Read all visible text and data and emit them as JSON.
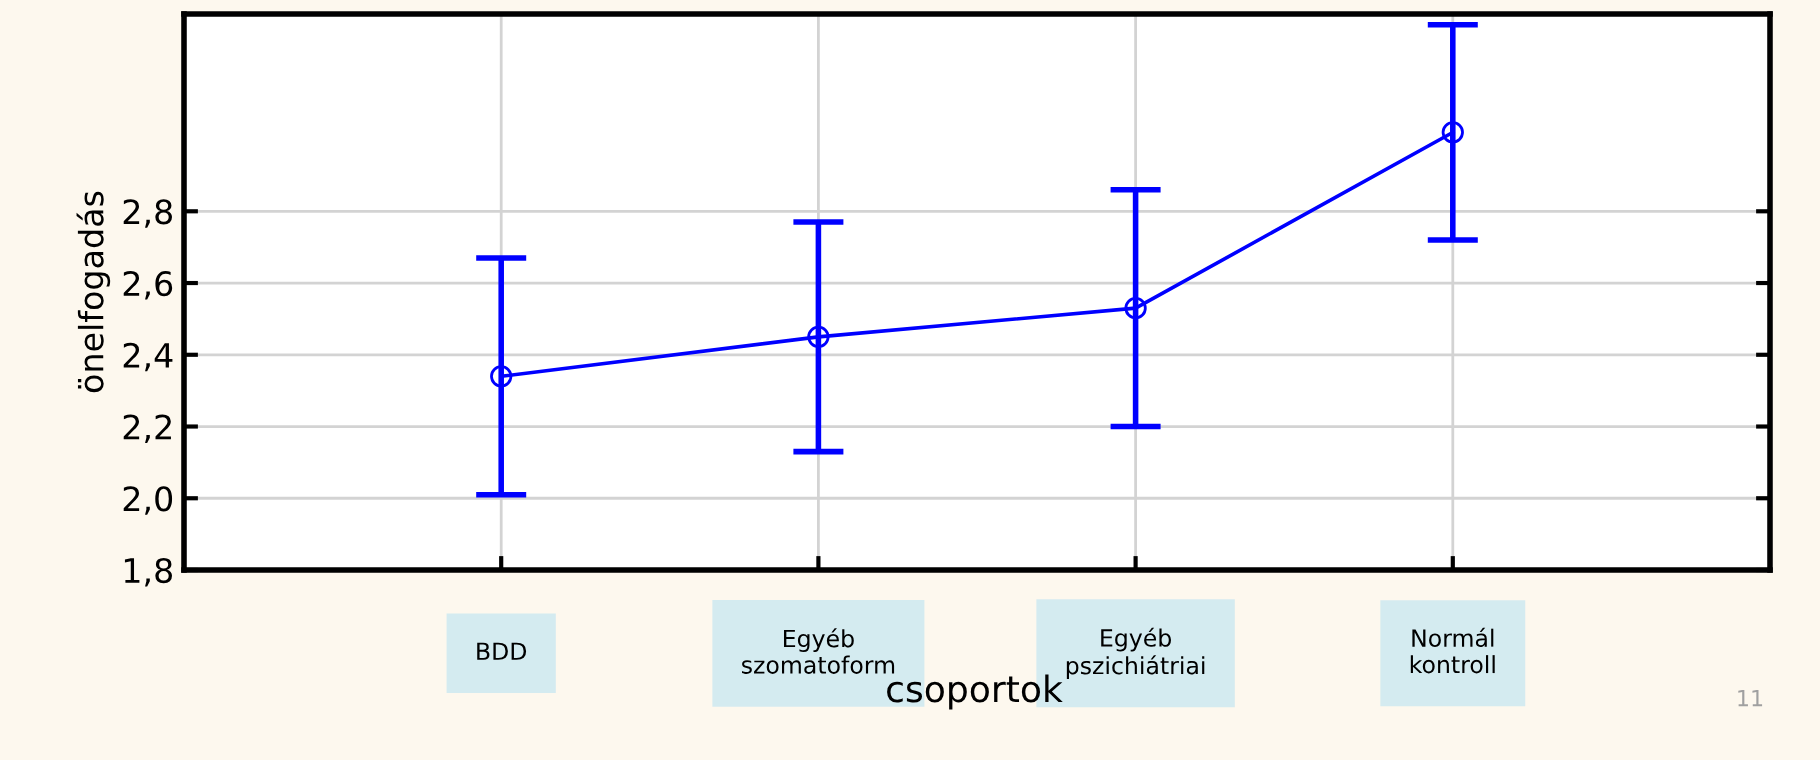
{
  "chart_data": {
    "type": "line",
    "ylabel": "önelfogadás",
    "xlabel": "csoportok",
    "categories": [
      "BDD",
      "Egyéb\nszomatoform",
      "Egyéb\npszichiátriai",
      "Normál\nkontroll"
    ],
    "series": [
      {
        "color": "#0000ff",
        "values": [
          2.34,
          2.45,
          2.53,
          3.02
        ],
        "errors": [
          0.33,
          0.32,
          0.33,
          0.3
        ]
      }
    ],
    "ylim": [
      1.8,
      3.35
    ],
    "yticks": [
      {
        "value": 1.8,
        "label": "1,8"
      },
      {
        "value": 2.0,
        "label": "2,0"
      },
      {
        "value": 2.2,
        "label": "2,2"
      },
      {
        "value": 2.4,
        "label": "2,4"
      },
      {
        "value": 2.6,
        "label": "2,6"
      },
      {
        "value": 2.8,
        "label": "2,8"
      }
    ],
    "grid": true,
    "marker": "circle",
    "line_style": "solid",
    "legend": false,
    "annotations": [
      "11"
    ]
  }
}
